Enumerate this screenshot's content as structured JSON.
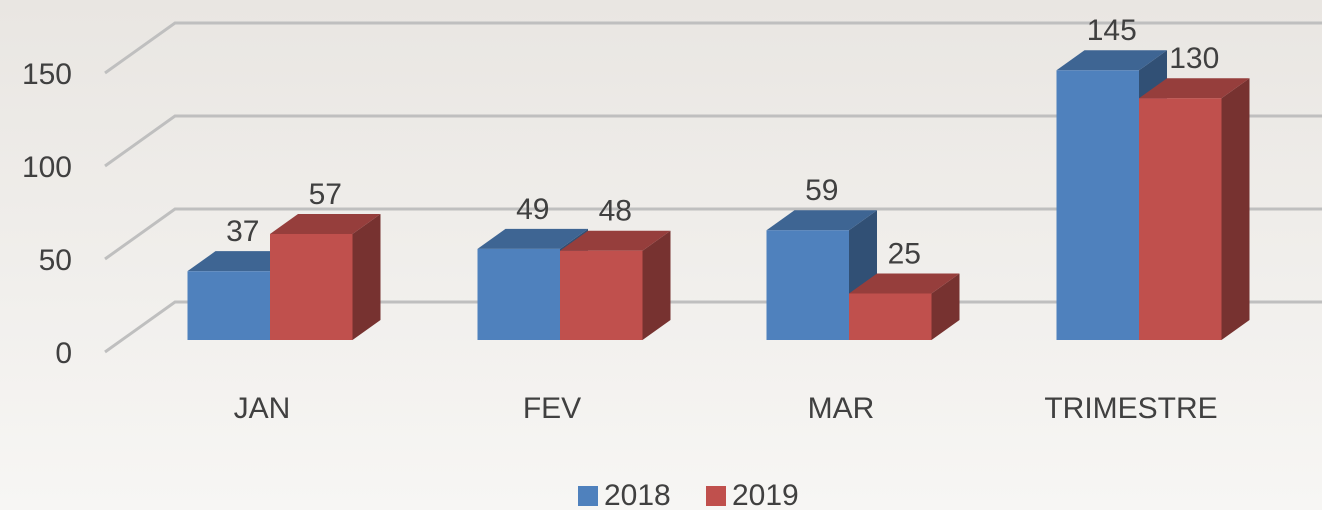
{
  "chart_data": {
    "type": "bar3d",
    "categories": [
      "JAN",
      "FEV",
      "MAR",
      "TRIMESTRE"
    ],
    "series": [
      {
        "name": "2018",
        "color": "#4f81bd",
        "values": [
          37,
          49,
          59,
          145
        ]
      },
      {
        "name": "2019",
        "color": "#c0504d",
        "values": [
          57,
          48,
          25,
          130
        ]
      }
    ],
    "ylim": [
      0,
      150
    ],
    "yticks": [
      0,
      50,
      100,
      150
    ],
    "grid": true,
    "legend": "bottom"
  }
}
